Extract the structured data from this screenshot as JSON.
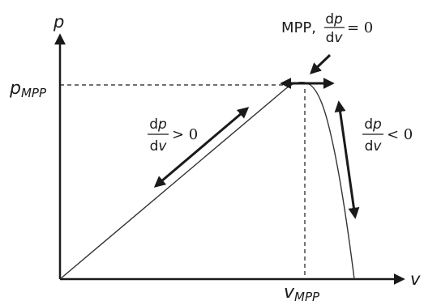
{
  "diagram": {
    "axes": {
      "y_label": "p",
      "x_label": "v"
    },
    "markers": {
      "p_mpp_main": "p",
      "p_mpp_sub": "MPP",
      "v_mpp_main": "v",
      "v_mpp_sub": "MPP"
    },
    "mpp_label": {
      "prefix": "MPP,",
      "num_d": "d",
      "num_var": "p",
      "den_d": "d",
      "den_var": "v",
      "relation": "= 0"
    },
    "left_slope": {
      "num_d": "d",
      "num_var": "p",
      "den_d": "d",
      "den_var": "v",
      "relation": "> 0"
    },
    "right_slope": {
      "num_d": "d",
      "num_var": "p",
      "den_d": "d",
      "den_var": "v",
      "relation": "< 0"
    },
    "colors": {
      "ink": "#1a1a1a",
      "curve": "#333333"
    }
  }
}
